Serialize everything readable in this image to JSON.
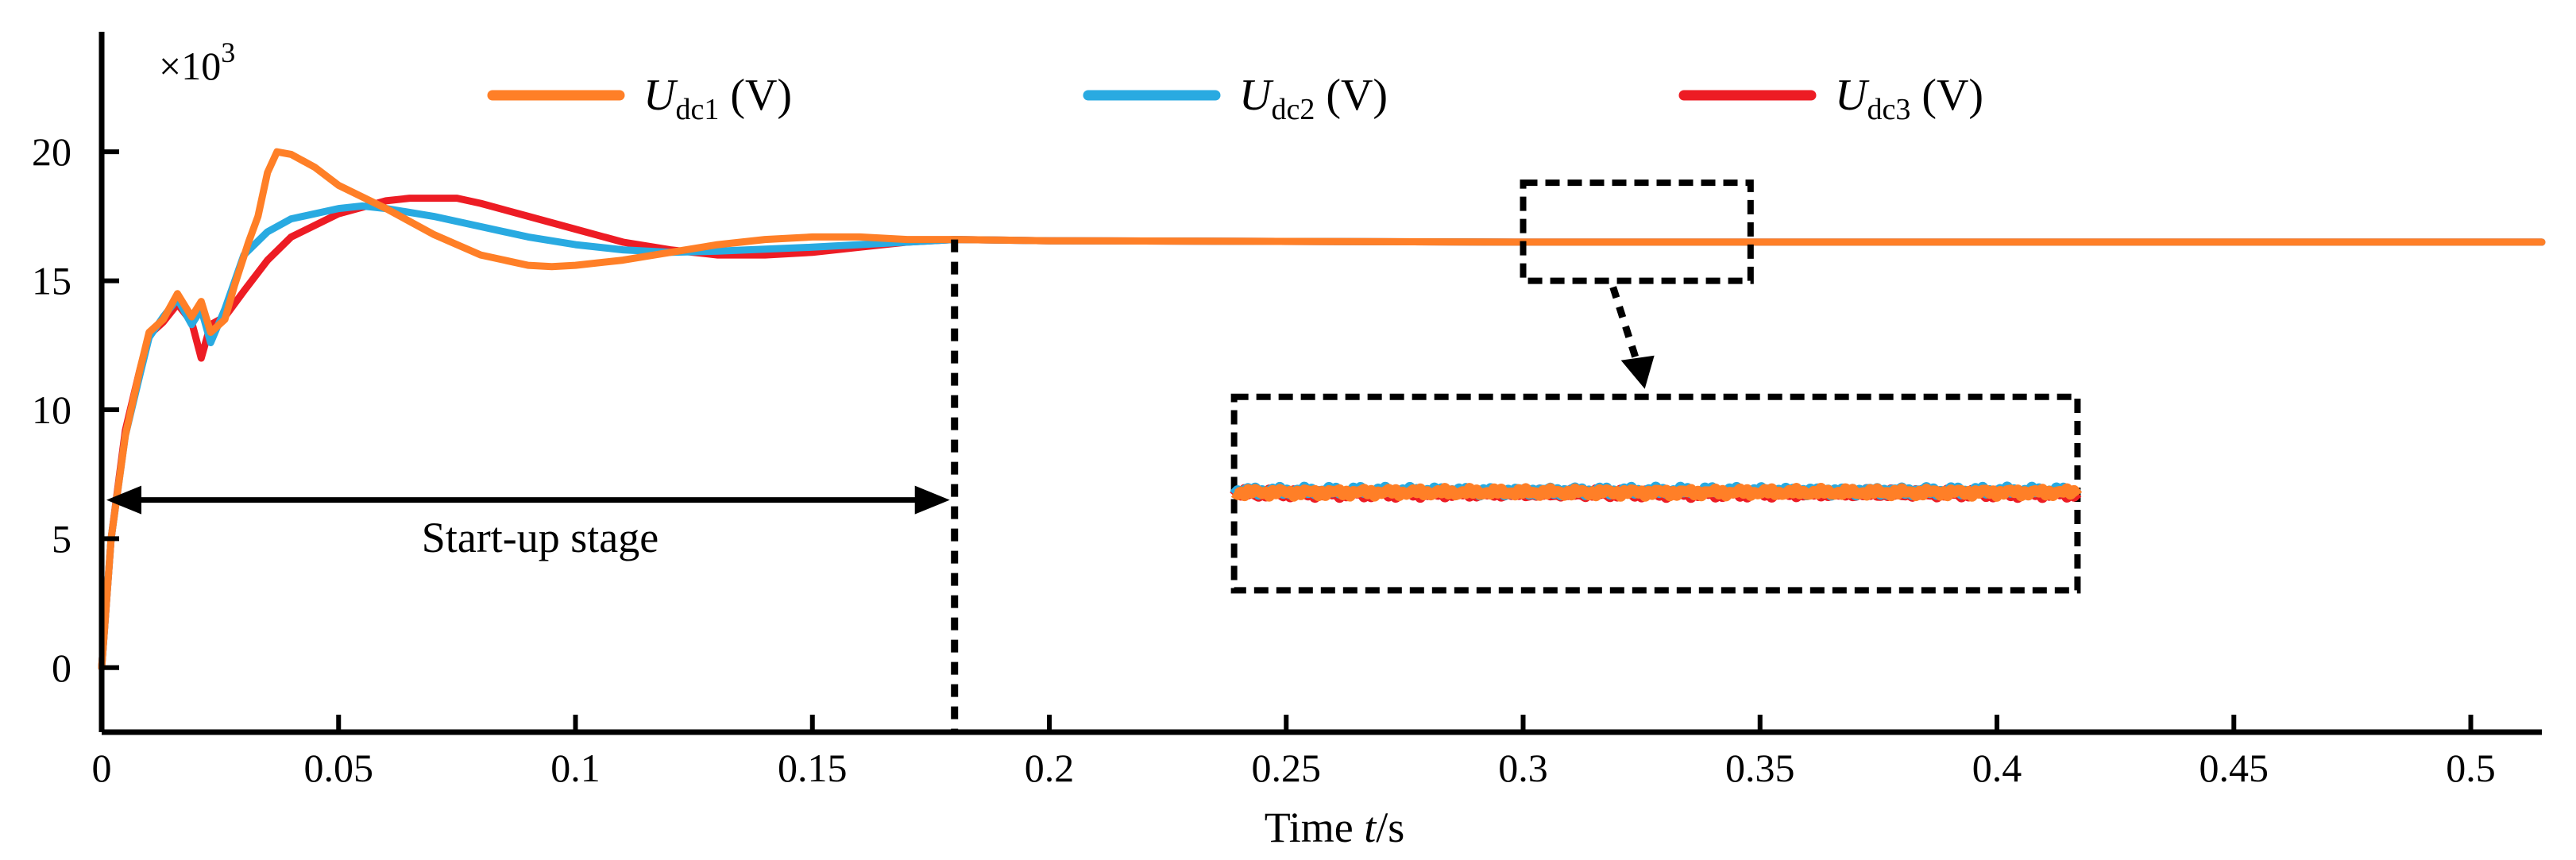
{
  "chart_data": {
    "type": "line",
    "title": "",
    "xlabel_prefix": "Time ",
    "xlabel_var": "t",
    "xlabel_suffix": "/s",
    "ylabel": "",
    "y_multiplier": "×10",
    "y_multiplier_exp": "3",
    "xlim": [
      0,
      0.515
    ],
    "ylim": [
      -2.5,
      24.5
    ],
    "xticks": [
      0,
      0.05,
      0.1,
      0.15,
      0.2,
      0.25,
      0.3,
      0.35,
      0.4,
      0.45,
      0.5
    ],
    "xtick_labels": [
      "0",
      "0.05",
      "0.1",
      "0.15",
      "0.2",
      "0.25",
      "0.3",
      "0.35",
      "0.4",
      "0.45",
      "0.5"
    ],
    "yticks": [
      0,
      5,
      10,
      15,
      20
    ],
    "ytick_labels": [
      "0",
      "5",
      "10",
      "15",
      "20"
    ],
    "series": [
      {
        "name": "Udc1 (V)",
        "sym": "U",
        "sub": "dc1",
        "unit": " (V)",
        "color": "#ff7f27",
        "points": [
          [
            0,
            0
          ],
          [
            0.002,
            5
          ],
          [
            0.005,
            9
          ],
          [
            0.008,
            11.5
          ],
          [
            0.01,
            13
          ],
          [
            0.013,
            13.5
          ],
          [
            0.016,
            14.5
          ],
          [
            0.019,
            13.6
          ],
          [
            0.021,
            14.2
          ],
          [
            0.023,
            13
          ],
          [
            0.026,
            13.5
          ],
          [
            0.028,
            14.8
          ],
          [
            0.031,
            16.5
          ],
          [
            0.033,
            17.5
          ],
          [
            0.035,
            19.2
          ],
          [
            0.037,
            20
          ],
          [
            0.04,
            19.9
          ],
          [
            0.045,
            19.4
          ],
          [
            0.05,
            18.7
          ],
          [
            0.06,
            17.8
          ],
          [
            0.07,
            16.8
          ],
          [
            0.08,
            16
          ],
          [
            0.09,
            15.6
          ],
          [
            0.095,
            15.55
          ],
          [
            0.1,
            15.6
          ],
          [
            0.11,
            15.8
          ],
          [
            0.12,
            16.1
          ],
          [
            0.13,
            16.4
          ],
          [
            0.14,
            16.6
          ],
          [
            0.15,
            16.7
          ],
          [
            0.16,
            16.7
          ],
          [
            0.17,
            16.6
          ],
          [
            0.18,
            16.6
          ],
          [
            0.2,
            16.55
          ],
          [
            0.3,
            16.5
          ],
          [
            0.4,
            16.5
          ],
          [
            0.515,
            16.5
          ]
        ]
      },
      {
        "name": "Udc2 (V)",
        "sym": "U",
        "sub": "dc2",
        "unit": " (V)",
        "color": "#29aae1",
        "points": [
          [
            0,
            0
          ],
          [
            0.002,
            5
          ],
          [
            0.005,
            9
          ],
          [
            0.008,
            11.3
          ],
          [
            0.01,
            12.8
          ],
          [
            0.013,
            13.6
          ],
          [
            0.016,
            14.3
          ],
          [
            0.019,
            13.3
          ],
          [
            0.021,
            13.9
          ],
          [
            0.023,
            12.6
          ],
          [
            0.026,
            13.9
          ],
          [
            0.03,
            16
          ],
          [
            0.035,
            16.9
          ],
          [
            0.04,
            17.4
          ],
          [
            0.05,
            17.8
          ],
          [
            0.055,
            17.9
          ],
          [
            0.06,
            17.8
          ],
          [
            0.07,
            17.5
          ],
          [
            0.08,
            17.1
          ],
          [
            0.09,
            16.7
          ],
          [
            0.1,
            16.4
          ],
          [
            0.11,
            16.2
          ],
          [
            0.12,
            16.1
          ],
          [
            0.13,
            16.15
          ],
          [
            0.15,
            16.3
          ],
          [
            0.17,
            16.5
          ],
          [
            0.18,
            16.6
          ],
          [
            0.2,
            16.55
          ],
          [
            0.3,
            16.5
          ],
          [
            0.4,
            16.5
          ],
          [
            0.515,
            16.5
          ]
        ]
      },
      {
        "name": "Udc3 (V)",
        "sym": "U",
        "sub": "dc3",
        "unit": " (V)",
        "color": "#ed1c24",
        "points": [
          [
            0,
            0
          ],
          [
            0.002,
            5
          ],
          [
            0.005,
            9.2
          ],
          [
            0.008,
            11.5
          ],
          [
            0.01,
            12.9
          ],
          [
            0.013,
            13.4
          ],
          [
            0.016,
            14.1
          ],
          [
            0.019,
            13.4
          ],
          [
            0.021,
            12
          ],
          [
            0.023,
            13.3
          ],
          [
            0.026,
            13.6
          ],
          [
            0.03,
            14.6
          ],
          [
            0.035,
            15.8
          ],
          [
            0.04,
            16.7
          ],
          [
            0.05,
            17.6
          ],
          [
            0.06,
            18.1
          ],
          [
            0.065,
            18.2
          ],
          [
            0.07,
            18.2
          ],
          [
            0.075,
            18.2
          ],
          [
            0.08,
            18
          ],
          [
            0.09,
            17.5
          ],
          [
            0.1,
            17
          ],
          [
            0.11,
            16.5
          ],
          [
            0.12,
            16.2
          ],
          [
            0.13,
            16
          ],
          [
            0.14,
            16
          ],
          [
            0.15,
            16.1
          ],
          [
            0.16,
            16.3
          ],
          [
            0.17,
            16.5
          ],
          [
            0.18,
            16.6
          ],
          [
            0.2,
            16.55
          ],
          [
            0.3,
            16.5
          ],
          [
            0.4,
            16.5
          ],
          [
            0.515,
            16.5
          ]
        ]
      }
    ],
    "annotations": {
      "startup_label": "Start-up stage",
      "startup_range": [
        0,
        0.18
      ],
      "startup_arrow_y": 6.5,
      "divider_x": 0.18,
      "zoom_region": {
        "x": [
          0.3,
          0.348
        ],
        "y": [
          15,
          18.8
        ]
      },
      "zoom_inset_anchor": {
        "x": [
          0.239,
          0.417
        ],
        "y": [
          3,
          10.5
        ]
      },
      "zoom_inset_level": 6.8
    },
    "legend_placement": "top-center"
  }
}
